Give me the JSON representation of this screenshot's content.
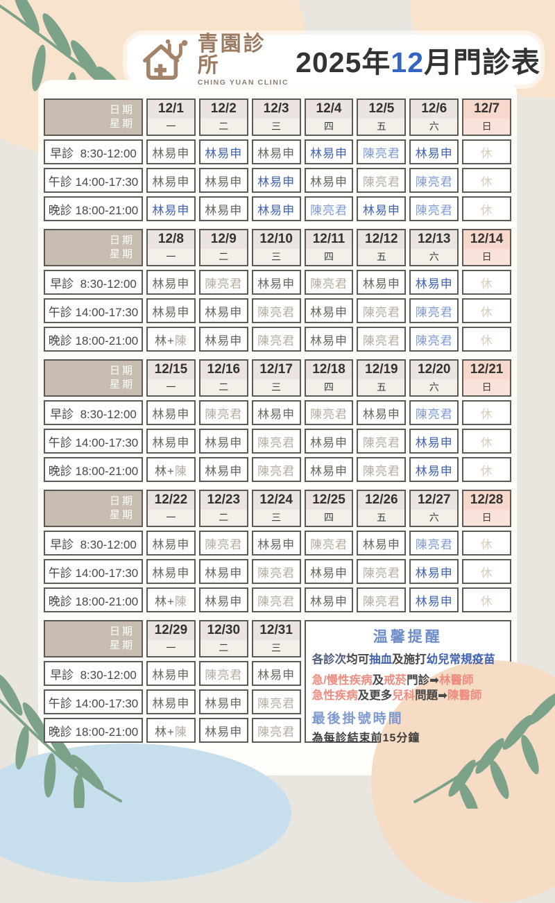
{
  "header": {
    "clinic_name": "青園診所",
    "clinic_name_en": "CHING YUAN CLINIC",
    "title_year": "2025年",
    "title_month": "12",
    "title_rest": "月門診表"
  },
  "table_labels": {
    "date_label": "日期",
    "weekday_label": "星期"
  },
  "sessions": [
    {
      "text": "早診  8:30-12:00"
    },
    {
      "text": "午診 14:00-17:30"
    },
    {
      "text": "晚診 18:00-21:00"
    }
  ],
  "doctors": {
    "lin": "林易申",
    "chen": "陳亮君",
    "rest": "休"
  },
  "colors": {
    "lin_dark": "#6a655d",
    "lin_blue": "#4163b1",
    "chen_blue": "#7e9ad2",
    "chen_gray": "#b5ada0",
    "rest_beige": "#dacdbb",
    "sunday_pink": "#f6d9cc",
    "header_taupe": "#c7bdb1",
    "brand_brown": "#9a7b61",
    "title_blue": "#3465c0",
    "notice_blue": "#6e8dc8",
    "notice_salmon": "#ee8d80",
    "leaf_green": "#7ca28a",
    "blob_peach": "#f8e3cd",
    "blob_blue": "#c7deec"
  },
  "weeks": [
    {
      "days": [
        {
          "date": "12/1",
          "wd": "一"
        },
        {
          "date": "12/2",
          "wd": "二"
        },
        {
          "date": "12/3",
          "wd": "三"
        },
        {
          "date": "12/4",
          "wd": "四"
        },
        {
          "date": "12/5",
          "wd": "五"
        },
        {
          "date": "12/6",
          "wd": "六"
        },
        {
          "date": "12/7",
          "wd": "日"
        }
      ],
      "rows": [
        [
          [
            [
              "林易申",
              "dark"
            ]
          ],
          [
            [
              "林易申",
              "blue"
            ]
          ],
          [
            [
              "林易申",
              "dark"
            ]
          ],
          [
            [
              "林易申",
              "blue"
            ]
          ],
          [
            [
              "陳亮君",
              "lightblue"
            ]
          ],
          [
            [
              "林易申",
              "blue"
            ]
          ],
          [
            [
              "休",
              "rest"
            ]
          ]
        ],
        [
          [
            [
              "林易申",
              "dark"
            ]
          ],
          [
            [
              "林易申",
              "dark"
            ]
          ],
          [
            [
              "林易申",
              "blue"
            ]
          ],
          [
            [
              "林易申",
              "dark"
            ]
          ],
          [
            [
              "陳亮君",
              "gray"
            ]
          ],
          [
            [
              "陳亮君",
              "lightblue"
            ]
          ],
          [
            [
              "休",
              "rest"
            ]
          ]
        ],
        [
          [
            [
              "林易申",
              "blue"
            ]
          ],
          [
            [
              "林易申",
              "dark"
            ]
          ],
          [
            [
              "林易申",
              "blue"
            ]
          ],
          [
            [
              "陳亮君",
              "lightblue"
            ]
          ],
          [
            [
              "林易申",
              "blue"
            ]
          ],
          [
            [
              "陳亮君",
              "lightblue"
            ]
          ],
          [
            [
              "休",
              "rest"
            ]
          ]
        ]
      ]
    },
    {
      "days": [
        {
          "date": "12/8",
          "wd": "一"
        },
        {
          "date": "12/9",
          "wd": "二"
        },
        {
          "date": "12/10",
          "wd": "三"
        },
        {
          "date": "12/11",
          "wd": "四"
        },
        {
          "date": "12/12",
          "wd": "五"
        },
        {
          "date": "12/13",
          "wd": "六"
        },
        {
          "date": "12/14",
          "wd": "日"
        }
      ],
      "rows": [
        [
          [
            [
              "林易申",
              "dark"
            ]
          ],
          [
            [
              "陳亮君",
              "gray"
            ]
          ],
          [
            [
              "林易申",
              "dark"
            ]
          ],
          [
            [
              "陳亮君",
              "gray"
            ]
          ],
          [
            [
              "林易申",
              "dark"
            ]
          ],
          [
            [
              "林易申",
              "blue"
            ]
          ],
          [
            [
              "休",
              "rest"
            ]
          ]
        ],
        [
          [
            [
              "林易申",
              "dark"
            ]
          ],
          [
            [
              "林易申",
              "dark"
            ]
          ],
          [
            [
              "陳亮君",
              "gray"
            ]
          ],
          [
            [
              "林易申",
              "dark"
            ]
          ],
          [
            [
              "陳亮君",
              "gray"
            ]
          ],
          [
            [
              "陳亮君",
              "lightblue"
            ]
          ],
          [
            [
              "休",
              "rest"
            ]
          ]
        ],
        [
          [
            [
              "林+",
              "dark"
            ],
            [
              "陳",
              "gray"
            ]
          ],
          [
            [
              "林易申",
              "dark"
            ]
          ],
          [
            [
              "陳亮君",
              "gray"
            ]
          ],
          [
            [
              "林易申",
              "dark"
            ]
          ],
          [
            [
              "陳亮君",
              "gray"
            ]
          ],
          [
            [
              "陳亮君",
              "lightblue"
            ]
          ],
          [
            [
              "休",
              "rest"
            ]
          ]
        ]
      ]
    },
    {
      "days": [
        {
          "date": "12/15",
          "wd": "一"
        },
        {
          "date": "12/16",
          "wd": "二"
        },
        {
          "date": "12/17",
          "wd": "三"
        },
        {
          "date": "12/18",
          "wd": "四"
        },
        {
          "date": "12/19",
          "wd": "五"
        },
        {
          "date": "12/20",
          "wd": "六"
        },
        {
          "date": "12/21",
          "wd": "日"
        }
      ],
      "rows": [
        [
          [
            [
              "林易申",
              "dark"
            ]
          ],
          [
            [
              "陳亮君",
              "gray"
            ]
          ],
          [
            [
              "林易申",
              "dark"
            ]
          ],
          [
            [
              "陳亮君",
              "gray"
            ]
          ],
          [
            [
              "林易申",
              "dark"
            ]
          ],
          [
            [
              "陳亮君",
              "lightblue"
            ]
          ],
          [
            [
              "休",
              "rest"
            ]
          ]
        ],
        [
          [
            [
              "林易申",
              "dark"
            ]
          ],
          [
            [
              "林易申",
              "dark"
            ]
          ],
          [
            [
              "陳亮君",
              "gray"
            ]
          ],
          [
            [
              "林易申",
              "dark"
            ]
          ],
          [
            [
              "陳亮君",
              "gray"
            ]
          ],
          [
            [
              "林易申",
              "blue"
            ]
          ],
          [
            [
              "休",
              "rest"
            ]
          ]
        ],
        [
          [
            [
              "林+",
              "dark"
            ],
            [
              "陳",
              "gray"
            ]
          ],
          [
            [
              "林易申",
              "dark"
            ]
          ],
          [
            [
              "陳亮君",
              "gray"
            ]
          ],
          [
            [
              "林易申",
              "dark"
            ]
          ],
          [
            [
              "陳亮君",
              "gray"
            ]
          ],
          [
            [
              "林易申",
              "blue"
            ]
          ],
          [
            [
              "休",
              "rest"
            ]
          ]
        ]
      ]
    },
    {
      "days": [
        {
          "date": "12/22",
          "wd": "一"
        },
        {
          "date": "12/23",
          "wd": "二"
        },
        {
          "date": "12/24",
          "wd": "三"
        },
        {
          "date": "12/25",
          "wd": "四"
        },
        {
          "date": "12/26",
          "wd": "五"
        },
        {
          "date": "12/27",
          "wd": "六"
        },
        {
          "date": "12/28",
          "wd": "日"
        }
      ],
      "rows": [
        [
          [
            [
              "林易申",
              "dark"
            ]
          ],
          [
            [
              "陳亮君",
              "gray"
            ]
          ],
          [
            [
              "林易申",
              "dark"
            ]
          ],
          [
            [
              "陳亮君",
              "gray"
            ]
          ],
          [
            [
              "林易申",
              "dark"
            ]
          ],
          [
            [
              "陳亮君",
              "lightblue"
            ]
          ],
          [
            [
              "休",
              "rest"
            ]
          ]
        ],
        [
          [
            [
              "林易申",
              "dark"
            ]
          ],
          [
            [
              "林易申",
              "dark"
            ]
          ],
          [
            [
              "陳亮君",
              "gray"
            ]
          ],
          [
            [
              "林易申",
              "dark"
            ]
          ],
          [
            [
              "陳亮君",
              "gray"
            ]
          ],
          [
            [
              "林易申",
              "blue"
            ]
          ],
          [
            [
              "休",
              "rest"
            ]
          ]
        ],
        [
          [
            [
              "林+",
              "dark"
            ],
            [
              "陳",
              "gray"
            ]
          ],
          [
            [
              "林易申",
              "dark"
            ]
          ],
          [
            [
              "陳亮君",
              "gray"
            ]
          ],
          [
            [
              "林易申",
              "dark"
            ]
          ],
          [
            [
              "陳亮君",
              "gray"
            ]
          ],
          [
            [
              "林易申",
              "blue"
            ]
          ],
          [
            [
              "休",
              "rest"
            ]
          ]
        ]
      ]
    },
    {
      "notice": true,
      "days": [
        {
          "date": "12/29",
          "wd": "一"
        },
        {
          "date": "12/30",
          "wd": "二"
        },
        {
          "date": "12/31",
          "wd": "三"
        }
      ],
      "rows": [
        [
          [
            [
              "林易申",
              "dark"
            ]
          ],
          [
            [
              "陳亮君",
              "gray"
            ]
          ],
          [
            [
              "林易申",
              "dark"
            ]
          ]
        ],
        [
          [
            [
              "林易申",
              "dark"
            ]
          ],
          [
            [
              "林易申",
              "dark"
            ]
          ],
          [
            [
              "陳亮君",
              "gray"
            ]
          ]
        ],
        [
          [
            [
              "林+",
              "dark"
            ],
            [
              "陳",
              "gray"
            ]
          ],
          [
            [
              "林易申",
              "dark"
            ]
          ],
          [
            [
              "陳亮君",
              "gray"
            ]
          ]
        ]
      ]
    }
  ],
  "notice": {
    "title": "温馨提醒",
    "lines": [
      [
        [
          "各診次",
          "navy"
        ],
        [
          "均可",
          "ink"
        ],
        [
          "抽血",
          "blue"
        ],
        [
          "及施打",
          "ink"
        ],
        [
          "幼兒常規疫苗",
          "blue"
        ]
      ],
      [
        [
          "急/慢性疾病",
          "salmon"
        ],
        [
          "及",
          "ink"
        ],
        [
          "戒菸",
          "salmon"
        ],
        [
          "門診",
          "ink"
        ],
        [
          "➡",
          "ink"
        ],
        [
          "林醫師",
          "salmon"
        ]
      ],
      [
        [
          "急性疾病",
          "salmon"
        ],
        [
          "及更多",
          "ink"
        ],
        [
          "兒科",
          "salmon"
        ],
        [
          "問題",
          "ink"
        ],
        [
          "➡",
          "ink"
        ],
        [
          "陳醫師",
          "salmon"
        ]
      ]
    ],
    "footer_title": "最後掛號時間",
    "footer_text": "為每診結束前15分鐘"
  }
}
